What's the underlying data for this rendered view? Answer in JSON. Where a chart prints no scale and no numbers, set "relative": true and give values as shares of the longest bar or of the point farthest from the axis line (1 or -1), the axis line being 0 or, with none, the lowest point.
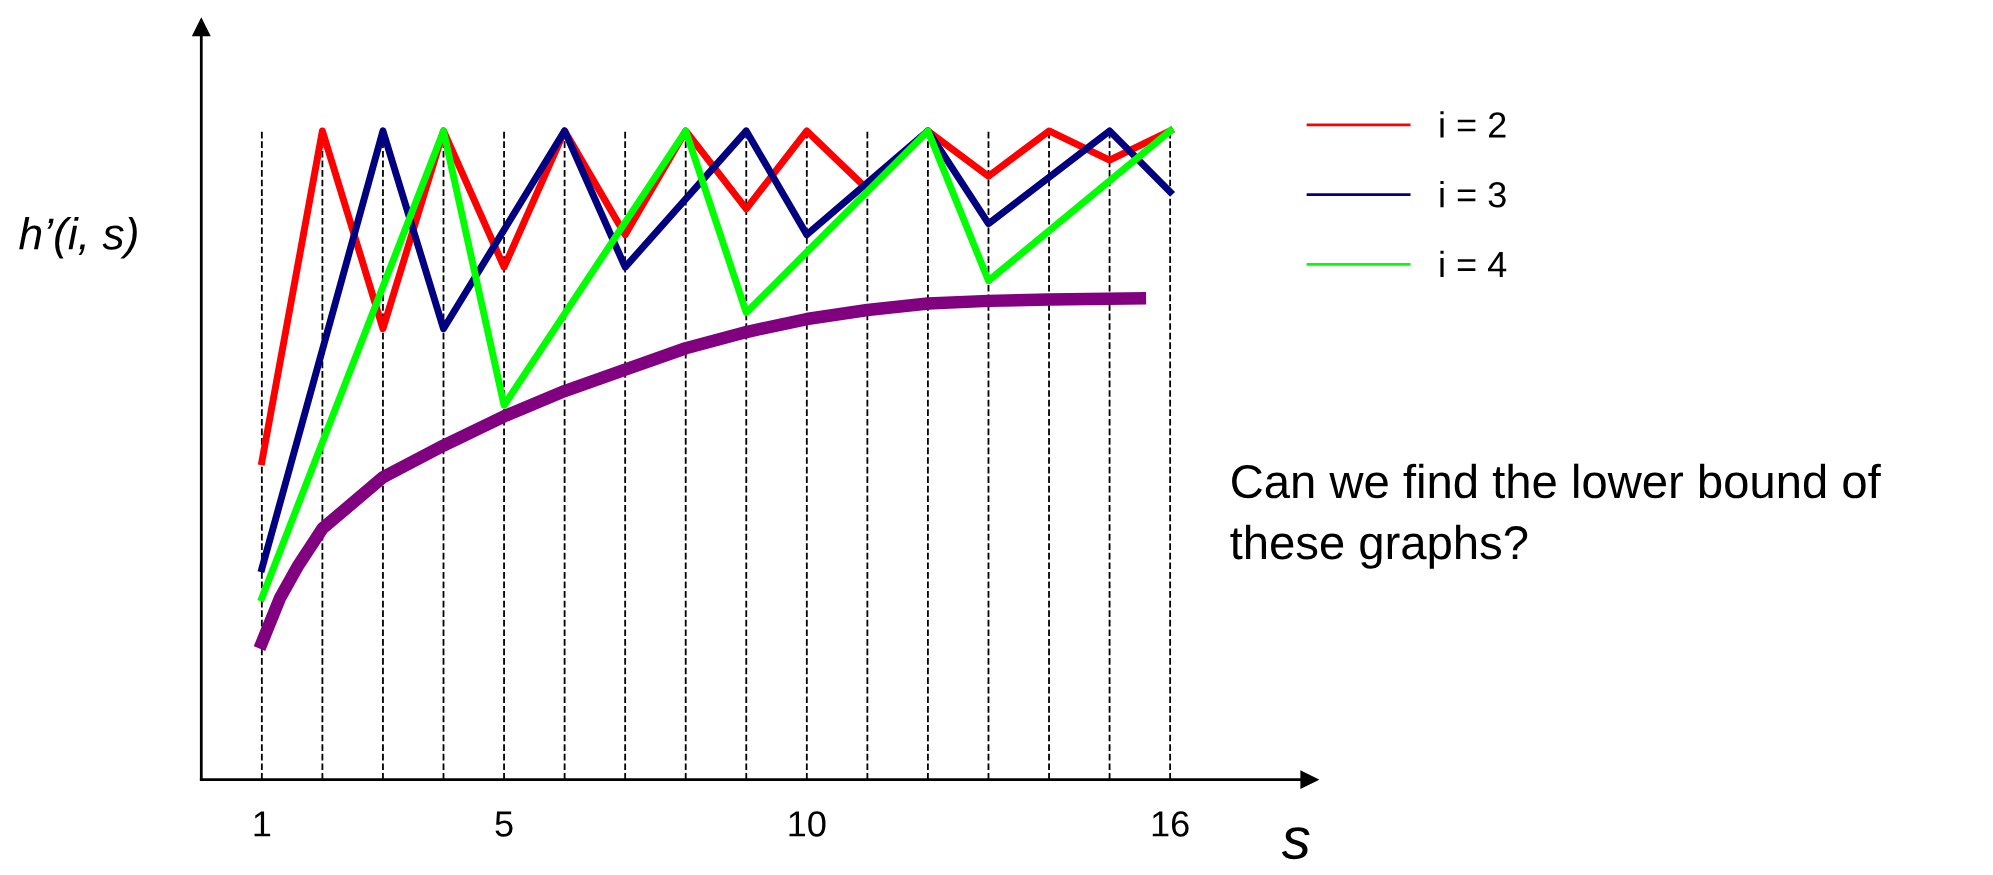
{
  "chart_data": {
    "type": "line",
    "relative": true,
    "ylabel": "h’(i, s)",
    "xlabel": "s",
    "xlim": [
      0,
      18.3
    ],
    "xticks": [
      1,
      5,
      10,
      16
    ],
    "grid": false,
    "legend": "right",
    "marker": "none",
    "line_style": "solid",
    "tick_labels": "x",
    "series": [
      {
        "name": "i = 2",
        "color": "#ff0000",
        "x": [
          1,
          2,
          3,
          4,
          5,
          6,
          7,
          8,
          9,
          10,
          11,
          12,
          13,
          14,
          15,
          16
        ],
        "values": [
          0.49,
          1,
          0.695,
          1,
          0.79,
          1,
          0.84,
          1,
          0.88,
          1,
          0.91,
          1,
          0.93,
          1,
          0.955,
          1
        ]
      },
      {
        "name": "i = 3",
        "color": "#000080",
        "x": [
          1,
          3,
          4,
          6,
          7,
          9,
          10,
          12,
          13,
          15,
          16
        ],
        "values": [
          0.325,
          1,
          0.695,
          1,
          0.79,
          1,
          0.84,
          1,
          0.857,
          1,
          0.906
        ]
      },
      {
        "name": "i = 4",
        "color": "#00ff00",
        "x": [
          1,
          4,
          5,
          8,
          9,
          12,
          13,
          16
        ],
        "values": [
          0.28,
          1,
          0.577,
          1,
          0.72,
          1,
          0.769,
          1
        ]
      },
      {
        "color": "#800080",
        "x": [
          1,
          1.3,
          1.6,
          2,
          3,
          4,
          5,
          6,
          7,
          8,
          9,
          10,
          11,
          12,
          13,
          14,
          15.5
        ],
        "values": [
          0.211,
          0.28,
          0.33,
          0.387,
          0.466,
          0.515,
          0.56,
          0.599,
          0.632,
          0.665,
          0.69,
          0.71,
          0.724,
          0.734,
          0.738,
          0.74,
          0.742
        ]
      }
    ],
    "ref_lines": [
      {
        "axis": "x",
        "value": 1,
        "color": "#000000",
        "line_style": "dashed"
      },
      {
        "axis": "x",
        "value": 2,
        "color": "#000000",
        "line_style": "dashed"
      },
      {
        "axis": "x",
        "value": 3,
        "color": "#000000",
        "line_style": "dashed"
      },
      {
        "axis": "x",
        "value": 4,
        "color": "#000000",
        "line_style": "dashed"
      },
      {
        "axis": "x",
        "value": 5,
        "color": "#000000",
        "line_style": "dashed"
      },
      {
        "axis": "x",
        "value": 6,
        "color": "#000000",
        "line_style": "dashed"
      },
      {
        "axis": "x",
        "value": 7,
        "color": "#000000",
        "line_style": "dashed"
      },
      {
        "axis": "x",
        "value": 8,
        "color": "#000000",
        "line_style": "dashed"
      },
      {
        "axis": "x",
        "value": 9,
        "color": "#000000",
        "line_style": "dashed"
      },
      {
        "axis": "x",
        "value": 10,
        "color": "#000000",
        "line_style": "dashed"
      },
      {
        "axis": "x",
        "value": 11,
        "color": "#000000",
        "line_style": "dashed"
      },
      {
        "axis": "x",
        "value": 12,
        "color": "#000000",
        "line_style": "dashed"
      },
      {
        "axis": "x",
        "value": 13,
        "color": "#000000",
        "line_style": "dashed"
      },
      {
        "axis": "x",
        "value": 14,
        "color": "#000000",
        "line_style": "dashed"
      },
      {
        "axis": "x",
        "value": 15,
        "color": "#000000",
        "line_style": "dashed"
      },
      {
        "axis": "x",
        "value": 16,
        "color": "#000000",
        "line_style": "dashed"
      }
    ],
    "annotations": [
      "Can we find the lower bound of these graphs?"
    ]
  }
}
